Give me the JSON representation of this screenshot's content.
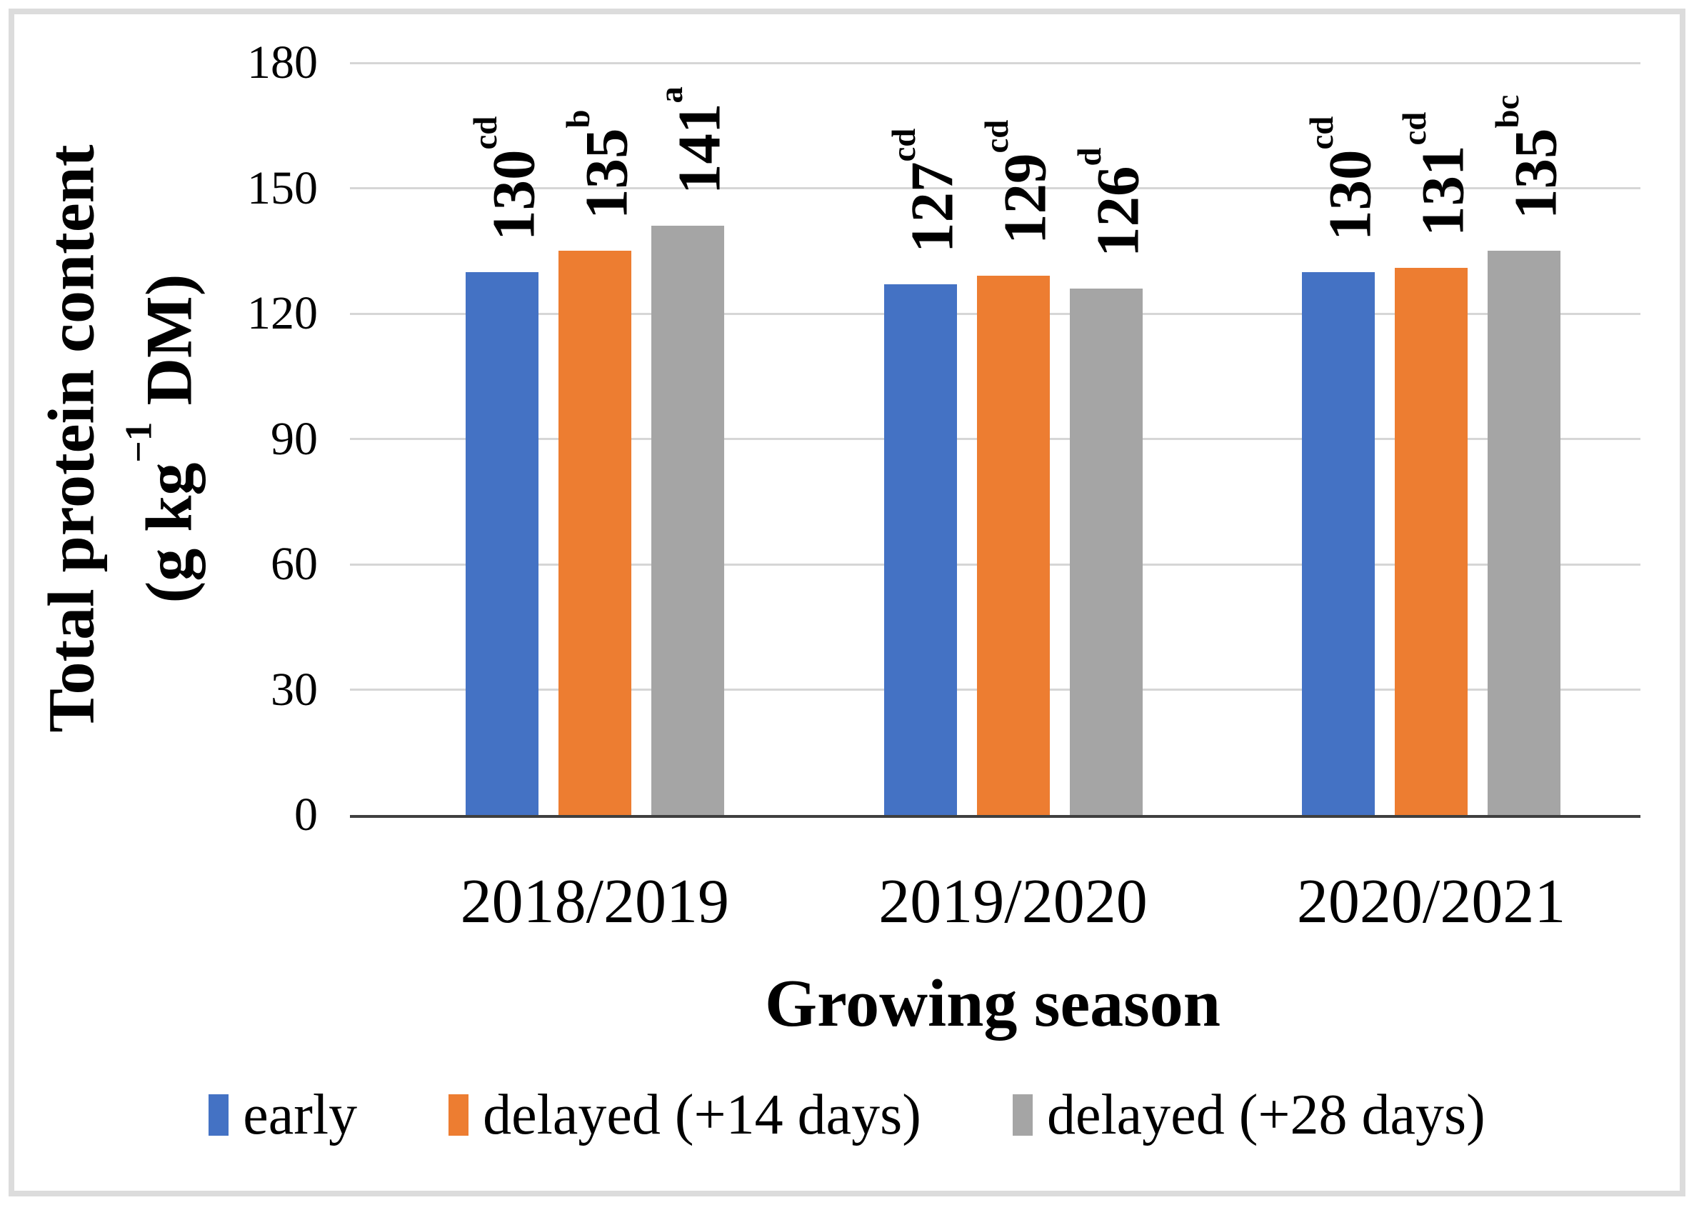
{
  "figure": {
    "background": "#ffffff",
    "frame_color": "#dcdcdc"
  },
  "colors": {
    "gridline": "#d6d6d6",
    "axis_line": "#3f3f3f",
    "text": "#000000"
  },
  "chart_data": {
    "type": "bar",
    "title": "",
    "xlabel": "Growing season",
    "ylabel": "Total protein content (g kg−1 DM)",
    "ylabel_lines": [
      {
        "text": "Total protein content"
      },
      {
        "prefix": "(g kg",
        "sup": "−1",
        "suffix": " DM)"
      }
    ],
    "ylim": [
      0,
      180
    ],
    "yticks": [
      0,
      30,
      60,
      90,
      120,
      150,
      180
    ],
    "grid": "horizontal gridlines on",
    "legend_position": "bottom",
    "categories": [
      "2018/2019",
      "2019/2020",
      "2020/2021"
    ],
    "series": [
      {
        "name": "early",
        "color": "#4472C4",
        "values": [
          130,
          127,
          130
        ],
        "sig_letters": [
          "cd",
          "cd",
          "cd"
        ]
      },
      {
        "name": "delayed (+14 days)",
        "color": "#ED7D31",
        "values": [
          135,
          129,
          131
        ],
        "sig_letters": [
          "b",
          "cd",
          "cd"
        ]
      },
      {
        "name": "delayed (+28 days)",
        "color": "#A5A5A5",
        "values": [
          141,
          126,
          135
        ],
        "sig_letters": [
          "a",
          "d",
          "bc"
        ]
      }
    ],
    "bar_label_note": "value labels rotated 90°, bold, with significance letter superscripts"
  }
}
